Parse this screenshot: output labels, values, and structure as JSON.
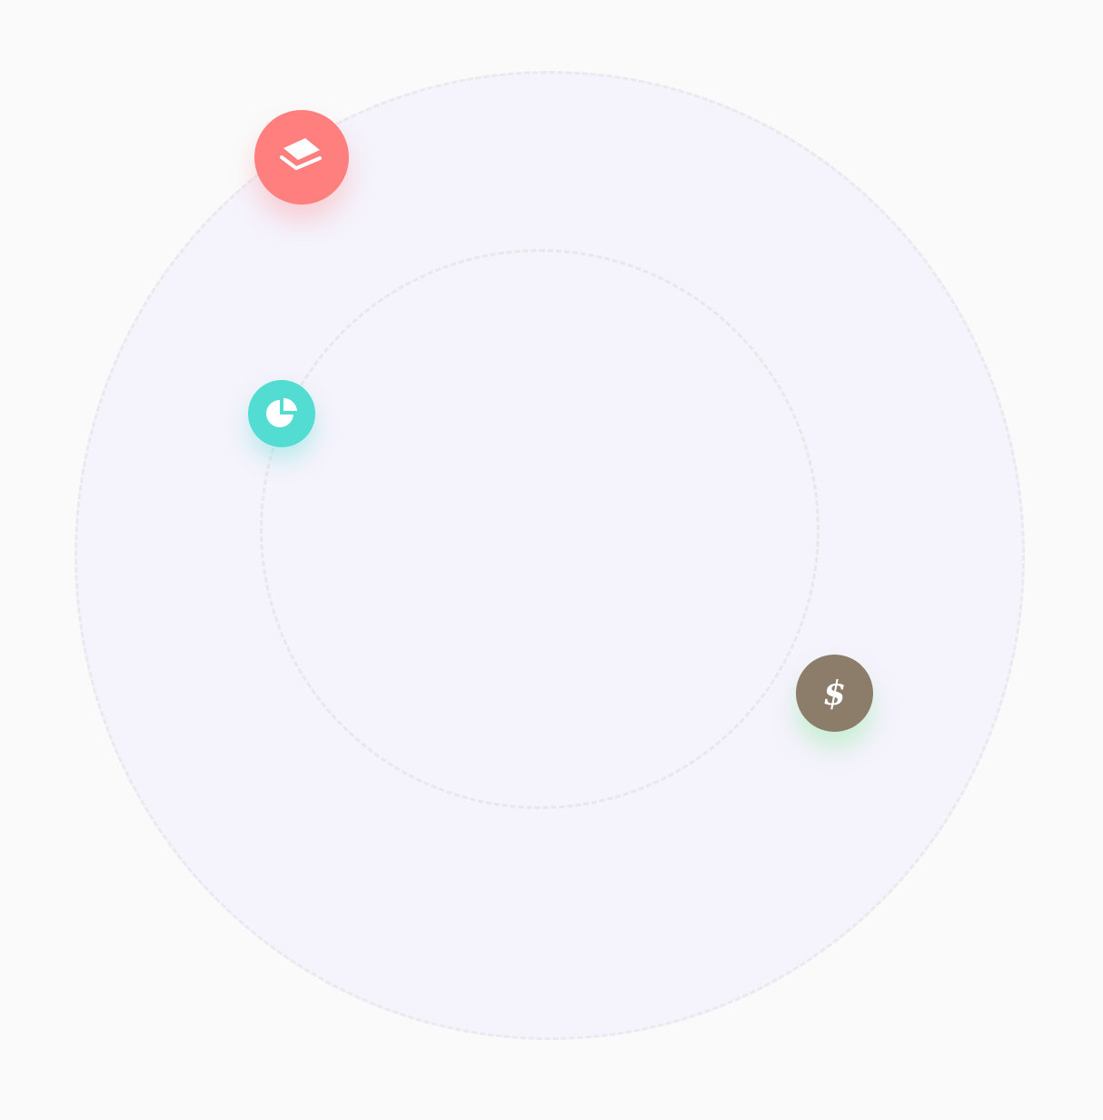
{
  "orbits": {
    "outer_fill": "#f5f3fc",
    "dash_color": "#ebe9ee"
  },
  "nodes": [
    {
      "name": "layers-node",
      "icon": "layers-icon",
      "color": "#ff7e7e"
    },
    {
      "name": "pie-chart-node",
      "icon": "pie-chart-icon",
      "color": "#52dcd2"
    },
    {
      "name": "dollar-node",
      "icon": "dollar-icon",
      "color": "#8c7c6a",
      "glyph": "$"
    }
  ]
}
